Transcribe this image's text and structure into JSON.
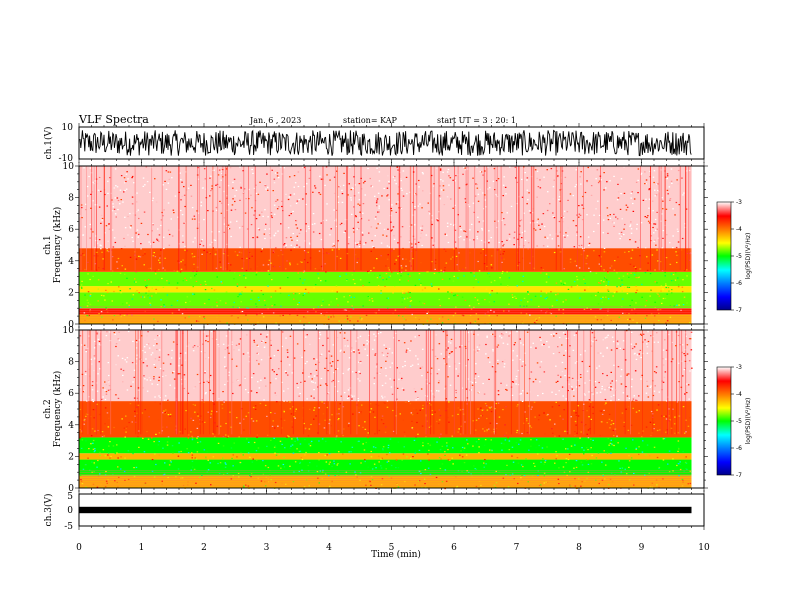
{
  "header": {
    "title": "VLF Spectra",
    "date": "Jan. 6 , 2023",
    "station": "station= KAP",
    "start_ut": "start UT =  3 : 20: 1"
  },
  "colors": {
    "waveform": "#000000",
    "colormap": [
      "#00008b",
      "#0000ff",
      "#0080ff",
      "#00ffff",
      "#00ff00",
      "#ffff00",
      "#ff8000",
      "#ff0000",
      "#ffffff"
    ]
  },
  "chart_data": [
    {
      "type": "line",
      "panel": "ch1-waveform",
      "ylabel": "ch.1(V)",
      "ylim": [
        -10,
        10
      ],
      "ytick_labels": [
        "10",
        "-10"
      ],
      "xlim": [
        0,
        10
      ],
      "x_unit": "min",
      "data_extent_min": 9.8,
      "amplitude_range": [
        -8,
        8
      ]
    },
    {
      "type": "heatmap",
      "panel": "ch1-spectrogram",
      "ylabel": "ch.1\nFrequency (kHz)",
      "ylabel_lines": [
        "ch.1",
        "Frequency (kHz)"
      ],
      "ylim": [
        0,
        10
      ],
      "ytick_labels": [
        "0",
        "2",
        "4",
        "6",
        "8",
        "10"
      ],
      "xlim": [
        0,
        10
      ],
      "data_extent_min": 9.8,
      "colorbar": {
        "label": "log(PSD)(V²/Hz)",
        "range": [
          -7,
          -3
        ],
        "tick_labels": [
          "-3",
          "-4",
          "-5",
          "-6",
          "-7"
        ]
      },
      "bands_khz": [
        {
          "from": 0.0,
          "to": 0.6,
          "log_psd": -4.2
        },
        {
          "from": 0.6,
          "to": 1.0,
          "log_psd": -3.6
        },
        {
          "from": 1.0,
          "to": 2.0,
          "log_psd": -4.8
        },
        {
          "from": 2.0,
          "to": 2.4,
          "log_psd": -4.4
        },
        {
          "from": 2.4,
          "to": 3.3,
          "log_psd": -4.8
        },
        {
          "from": 3.3,
          "to": 4.8,
          "log_psd": -3.8
        },
        {
          "from": 4.8,
          "to": 10.0,
          "log_psd": -3.1
        }
      ]
    },
    {
      "type": "heatmap",
      "panel": "ch2-spectrogram",
      "ylabel": "ch.2\nFrequency (kHz)",
      "ylabel_lines": [
        "ch.2",
        "Frequency (kHz)"
      ],
      "ylim": [
        0,
        10
      ],
      "ytick_labels": [
        "0",
        "2",
        "4",
        "6",
        "8",
        "10"
      ],
      "xlim": [
        0,
        10
      ],
      "data_extent_min": 9.8,
      "colorbar": {
        "label": "log(PSD)(V²/Hz)",
        "range": [
          -7,
          -3
        ],
        "tick_labels": [
          "-3",
          "-4",
          "-5",
          "-6",
          "-7"
        ]
      },
      "bands_khz": [
        {
          "from": 0.0,
          "to": 0.8,
          "log_psd": -4.2
        },
        {
          "from": 0.8,
          "to": 1.8,
          "log_psd": -5.0
        },
        {
          "from": 1.8,
          "to": 2.2,
          "log_psd": -4.2
        },
        {
          "from": 2.2,
          "to": 3.2,
          "log_psd": -5.0
        },
        {
          "from": 3.2,
          "to": 5.5,
          "log_psd": -3.8
        },
        {
          "from": 5.5,
          "to": 10.0,
          "log_psd": -3.1
        }
      ]
    },
    {
      "type": "line",
      "panel": "ch3-waveform",
      "ylabel": "ch.3(V)",
      "ylim": [
        -5,
        5
      ],
      "ytick_labels": [
        "5",
        "0",
        "-5"
      ],
      "xlim": [
        0,
        10
      ],
      "xlabel": "Time (min)",
      "xtick_labels": [
        "0",
        "1",
        "2",
        "3",
        "4",
        "5",
        "6",
        "7",
        "8",
        "9",
        "10"
      ],
      "data_extent_min": 9.8,
      "amplitude_range": [
        -1,
        1
      ]
    }
  ]
}
